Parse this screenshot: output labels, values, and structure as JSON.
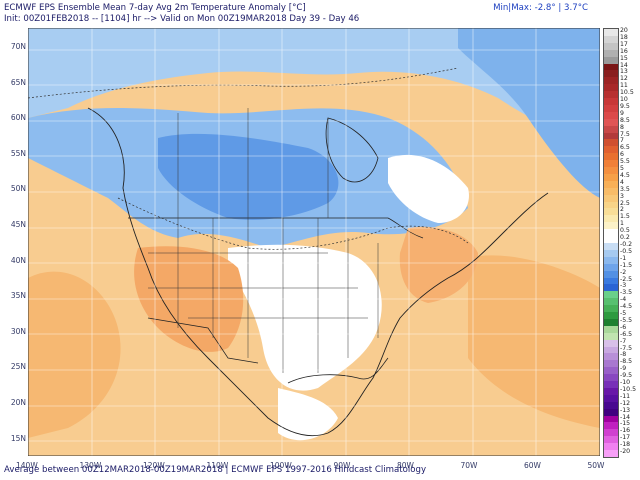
{
  "header": {
    "title": "ECMWF EPS Ensemble Mean 7-day Avg 2m Temperature Anomaly [°C]",
    "init": "Init: 00Z01FEB2018 -- [1104] hr --> Valid on Mon 00Z19MAR2018  Day 39 - Day 46",
    "minmax": "Min|Max: -2.8° | 3.7°C"
  },
  "footer": "Average between 00Z12MAR2018-00Z19MAR2018 | ECMWF EPS 1997-2016 Hindcast Climatology",
  "map": {
    "lat_labels": [
      "70N",
      "65N",
      "60N",
      "55N",
      "50N",
      "45N",
      "40N",
      "35N",
      "30N",
      "25N",
      "20N",
      "15N"
    ],
    "lon_labels": [
      "140W",
      "130W",
      "120W",
      "110W",
      "100W",
      "90W",
      "80W",
      "70W",
      "60W",
      "50W"
    ]
  },
  "legend": {
    "labels": [
      "20",
      "18",
      "17",
      "16",
      "15",
      "14",
      "13",
      "12",
      "11",
      "10.5",
      "10",
      "9.5",
      "9",
      "8.5",
      "8",
      "7.5",
      "7",
      "6.5",
      "6",
      "5.5",
      "5",
      "4.5",
      "4",
      "3.5",
      "3",
      "2.5",
      "2",
      "1.5",
      "1",
      "0.5",
      "0.2",
      "-0.2",
      "-0.5",
      "-1",
      "-1.5",
      "-2",
      "-2.5",
      "-3",
      "-3.5",
      "-4",
      "-4.5",
      "-5",
      "-5.5",
      "-6",
      "-6.5",
      "-7",
      "-7.5",
      "-8",
      "-8.5",
      "-9",
      "-9.5",
      "-10",
      "-10.5",
      "-11",
      "-12",
      "-13",
      "-14",
      "-15",
      "-16",
      "-17",
      "-18",
      "-20"
    ],
    "colors": [
      "#e8e8e8",
      "#d4d4d4",
      "#c4c4c4",
      "#b0b0b0",
      "#9a9a9a",
      "#7a1515",
      "#8a1f1f",
      "#9c2424",
      "#a82828",
      "#b83030",
      "#c83838",
      "#d24040",
      "#dc4a4a",
      "#e05555",
      "#c84848",
      "#b23a3a",
      "#d05030",
      "#e06030",
      "#e87030",
      "#f08038",
      "#f49040",
      "#f6a048",
      "#f8b058",
      "#f8bc68",
      "#f8c878",
      "#f8d488",
      "#f8de98",
      "#faeab0",
      "#fcf2c8",
      "#ffffff",
      "#ffffff",
      "#c8ddf4",
      "#a6caf0",
      "#8ab8ee",
      "#6ea4ea",
      "#5290e4",
      "#3a7ae0",
      "#2a64d4",
      "#6ad08a",
      "#58c070",
      "#46b058",
      "#2e9a40",
      "#1e8030",
      "#a8d89a",
      "#c0e4b0",
      "#d8c0e8",
      "#c8a8e0",
      "#b890d8",
      "#a878d0",
      "#9860c8",
      "#8848c0",
      "#7830b8",
      "#6818a8",
      "#5810a0",
      "#480890",
      "#400080",
      "#a000a0",
      "#c020c0",
      "#d040d0",
      "#e060e0",
      "#f080f0",
      "#f8a0f8"
    ]
  }
}
